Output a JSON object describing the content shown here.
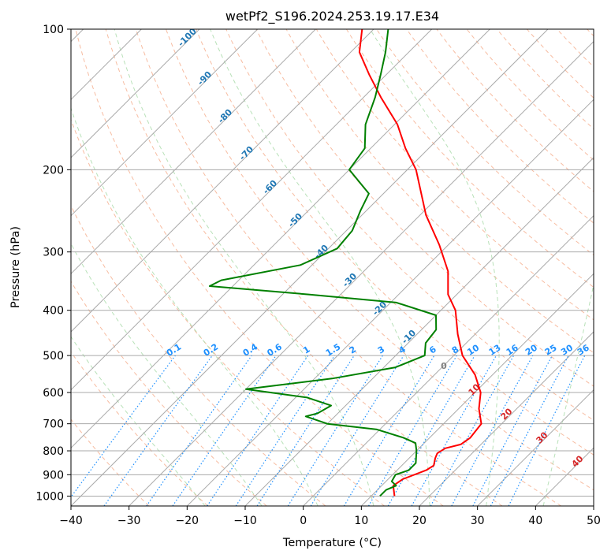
{
  "chart_data": {
    "type": "line",
    "title": "wetPf2_S196.2024.253.19.17.E34",
    "xlabel": "Temperature (°C)",
    "ylabel": "Pressure (hPa)",
    "xlim": [
      -40,
      50
    ],
    "ylim": [
      1050,
      100
    ],
    "y_scale": "log",
    "skew": "skew-T",
    "grid": true,
    "x_ticks": [
      -40,
      -30,
      -20,
      -10,
      0,
      10,
      20,
      30,
      40,
      50
    ],
    "y_ticks": [
      100,
      200,
      300,
      400,
      500,
      600,
      700,
      800,
      900,
      1000
    ],
    "series": [
      {
        "color": "#ff0000",
        "points": [
          {
            "p": 1000,
            "t": 14.0
          },
          {
            "p": 950,
            "t": 12.0
          },
          {
            "p": 920,
            "t": 12.5
          },
          {
            "p": 880,
            "t": 15.0
          },
          {
            "p": 860,
            "t": 15.5
          },
          {
            "p": 830,
            "t": 14.5
          },
          {
            "p": 810,
            "t": 14.0
          },
          {
            "p": 790,
            "t": 14.5
          },
          {
            "p": 775,
            "t": 16.5
          },
          {
            "p": 750,
            "t": 17.0
          },
          {
            "p": 700,
            "t": 16.5
          },
          {
            "p": 650,
            "t": 13.5
          },
          {
            "p": 600,
            "t": 11.0
          },
          {
            "p": 550,
            "t": 7.0
          },
          {
            "p": 500,
            "t": 1.5
          },
          {
            "p": 450,
            "t": -3.0
          },
          {
            "p": 400,
            "t": -7.5
          },
          {
            "p": 370,
            "t": -11.5
          },
          {
            "p": 330,
            "t": -15.5
          },
          {
            "p": 290,
            "t": -21.5
          },
          {
            "p": 250,
            "t": -29.0
          },
          {
            "p": 200,
            "t": -38.5
          },
          {
            "p": 180,
            "t": -44.0
          },
          {
            "p": 160,
            "t": -49.5
          },
          {
            "p": 140,
            "t": -57.0
          },
          {
            "p": 125,
            "t": -63.0
          },
          {
            "p": 112,
            "t": -68.5
          },
          {
            "p": 100,
            "t": -72.0
          }
        ]
      },
      {
        "color": "#008000",
        "points": [
          {
            "p": 1000,
            "t": 11.5
          },
          {
            "p": 970,
            "t": 11.5
          },
          {
            "p": 950,
            "t": 12.5
          },
          {
            "p": 930,
            "t": 11.0
          },
          {
            "p": 900,
            "t": 10.5
          },
          {
            "p": 880,
            "t": 12.0
          },
          {
            "p": 850,
            "t": 12.0
          },
          {
            "p": 800,
            "t": 10.0
          },
          {
            "p": 770,
            "t": 8.5
          },
          {
            "p": 750,
            "t": 5.5
          },
          {
            "p": 720,
            "t": -0.5
          },
          {
            "p": 700,
            "t": -10.0
          },
          {
            "p": 675,
            "t": -15.0
          },
          {
            "p": 665,
            "t": -13.5
          },
          {
            "p": 640,
            "t": -12.5
          },
          {
            "p": 615,
            "t": -18.0
          },
          {
            "p": 590,
            "t": -30.0
          },
          {
            "p": 560,
            "t": -17.0
          },
          {
            "p": 530,
            "t": -8.0
          },
          {
            "p": 500,
            "t": -5.0
          },
          {
            "p": 470,
            "t": -7.0
          },
          {
            "p": 440,
            "t": -7.5
          },
          {
            "p": 410,
            "t": -10.0
          },
          {
            "p": 385,
            "t": -19.0
          },
          {
            "p": 370,
            "t": -35.5
          },
          {
            "p": 355,
            "t": -54.0
          },
          {
            "p": 345,
            "t": -53.0
          },
          {
            "p": 320,
            "t": -42.0
          },
          {
            "p": 295,
            "t": -38.5
          },
          {
            "p": 270,
            "t": -39.0
          },
          {
            "p": 245,
            "t": -41.0
          },
          {
            "p": 225,
            "t": -42.5
          },
          {
            "p": 200,
            "t": -50.0
          },
          {
            "p": 180,
            "t": -51.0
          },
          {
            "p": 160,
            "t": -55.0
          },
          {
            "p": 140,
            "t": -58.0
          },
          {
            "p": 125,
            "t": -61.0
          },
          {
            "p": 112,
            "t": -64.0
          },
          {
            "p": 100,
            "t": -67.5
          }
        ]
      }
    ],
    "background_lines": {
      "isobar_color": "#aaaaaa",
      "isotherm_color": "#aaaaaa",
      "dry_adiabat_color": "#f4a582",
      "moist_adiabat_color": "#a6d9a6",
      "mixing_ratio_color": "#1e90ff",
      "dry_adiabats_theta_c": [
        -30,
        -20,
        -10,
        0,
        10,
        20,
        30,
        40,
        50,
        60,
        70,
        80,
        90,
        100,
        110,
        120,
        130,
        140,
        150,
        160,
        170,
        180,
        190,
        200
      ],
      "moist_adiabats_c": [
        -20,
        -10,
        0,
        10,
        20,
        30,
        40
      ],
      "mixing_ratio_lines": [
        "0.1",
        "0.2",
        "0.4",
        "0.6",
        "1",
        "1.5",
        "2",
        "3",
        "4",
        "6",
        "8",
        "10",
        "13",
        "16",
        "20",
        "25",
        "30",
        "36"
      ]
    },
    "annotations": {
      "moist_labels": [
        "-100",
        "-90",
        "-80",
        "-70",
        "-60",
        "-50",
        "-40",
        "-30",
        "-20",
        "-10"
      ],
      "dry_labels": [
        "10",
        "20",
        "30",
        "40"
      ],
      "lcl_label": "0"
    }
  }
}
